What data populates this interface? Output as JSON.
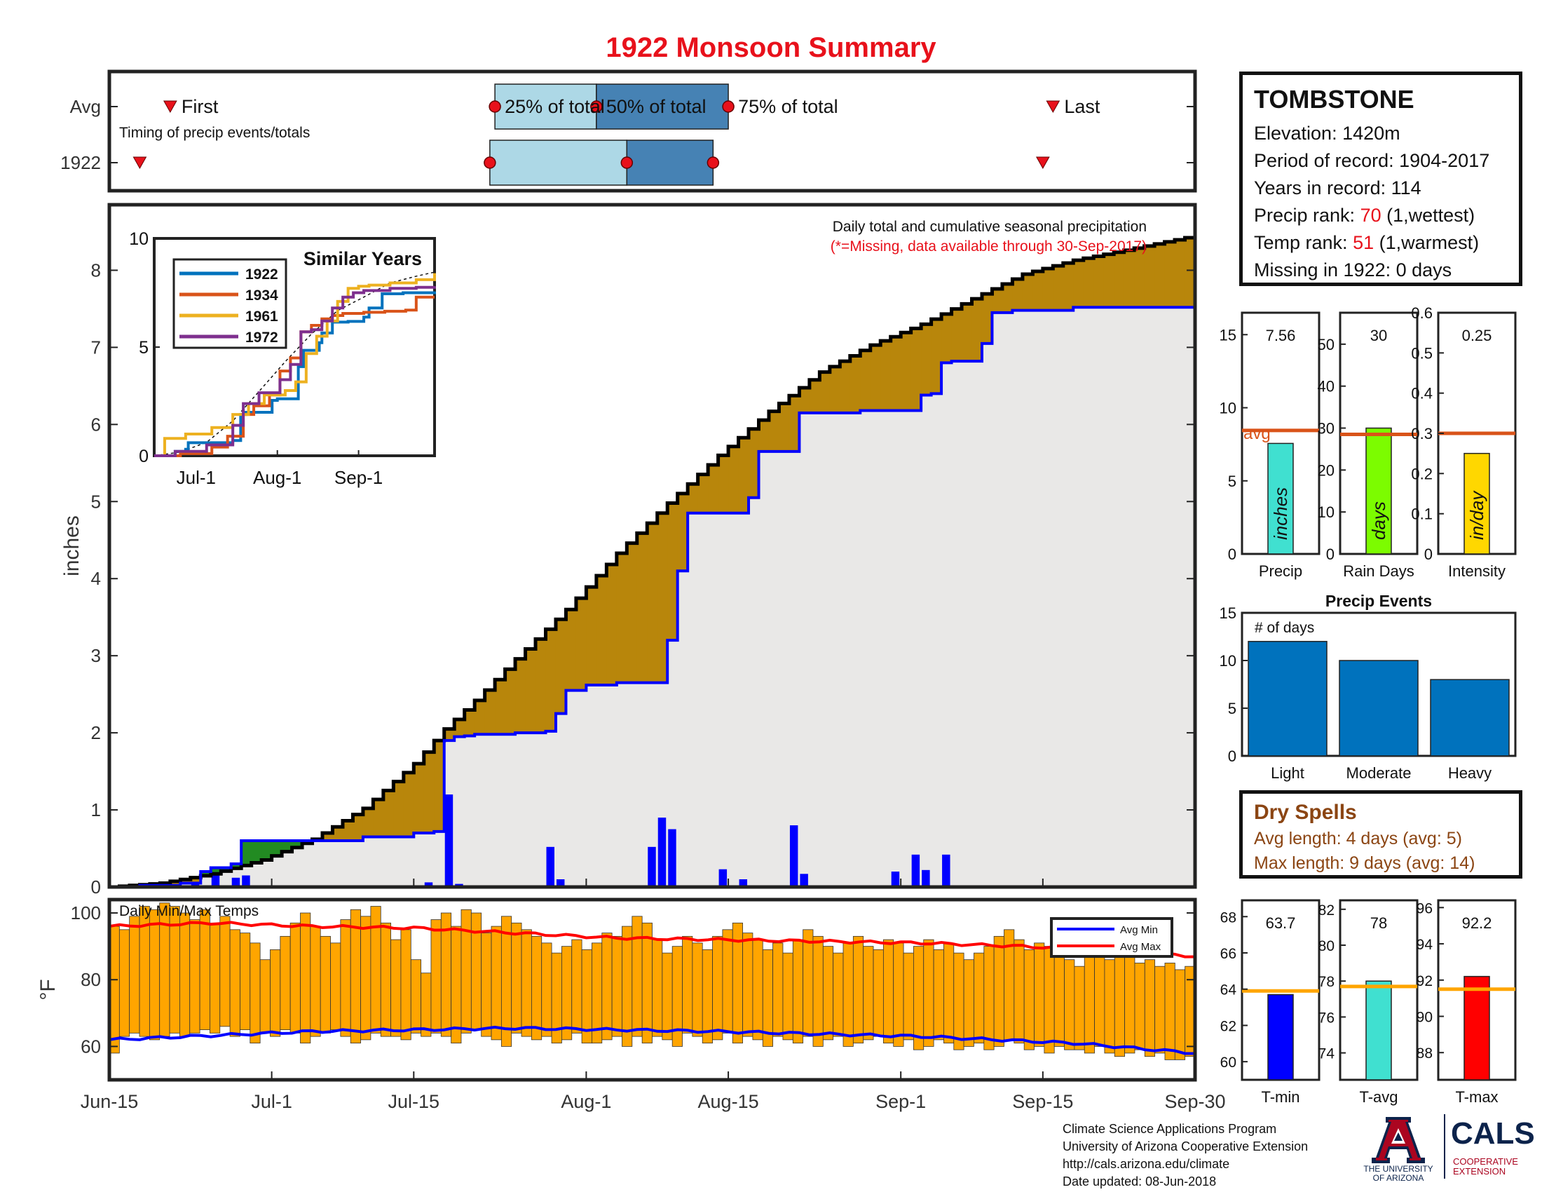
{
  "title": "1922 Monsoon Summary",
  "timing": {
    "row_labels": [
      "Avg",
      "1922"
    ],
    "first_label": "First",
    "last_label": "Last",
    "subtitle": "Timing of precip events/totals",
    "pct_labels": [
      "25% of total",
      "50% of total",
      "75% of total"
    ],
    "avg": {
      "first": 6,
      "p25": 38,
      "p50": 48,
      "p75": 61,
      "last": 93
    },
    "year": {
      "first": 3,
      "p25": 37.5,
      "p50": 51,
      "p75": 59.5,
      "last": 92
    }
  },
  "station": {
    "name": "TOMBSTONE",
    "elevation": "Elevation: 1420m",
    "period": "Period of record: 1904-2017",
    "years": "Years in record: 114",
    "precip_rank_prefix": "Precip rank: ",
    "precip_rank_value": "70",
    "precip_rank_suffix": " (1,wettest)",
    "temp_rank_prefix": "Temp rank: ",
    "temp_rank_value": "51",
    "temp_rank_suffix": " (1,warmest)",
    "missing": "Missing in 1922: 0 days"
  },
  "dry_spells": {
    "title": "Dry Spells",
    "avg": "Avg length: 4 days (avg: 5)",
    "max": "Max length: 9 days (avg: 14)"
  },
  "footer": {
    "line1": "Climate Science Applications Program",
    "line2": "University of Arizona Cooperative Extension",
    "line3": "http://cals.arizona.edu/climate",
    "line4": " Date updated: 08-Jun-2018"
  },
  "logos": {
    "ua_line1": "THE UNIVERSITY",
    "ua_line2": "OF ARIZONA",
    "cals": "CALS",
    "cals_sub1": "COOPERATIVE",
    "cals_sub2": "EXTENSION"
  },
  "colors": {
    "year_line": "#0000ff",
    "avg_line": "#000000",
    "deficit_fill": "#b8860b",
    "surplus_fill": "#228b22",
    "bg_fill": "#e9e8e7",
    "bar_blue": "#0000ff",
    "temp_bar": "#ffa500",
    "avg_min": "#0000ff",
    "avg_max": "#ff0000",
    "pct_light": "#add8e6",
    "pct_dark": "#4682b4",
    "marker": "#e8111b"
  },
  "chart_data": [
    {
      "id": "cumulative",
      "type": "line",
      "title": "Daily total and cumulative seasonal precipitation",
      "subtitle": "(*=Missing, data available through 30-Sep-2017)",
      "ylabel": "inches",
      "ylim": [
        0,
        8.85
      ],
      "yticks": [
        0,
        1,
        2,
        3,
        4,
        5,
        6,
        7,
        8
      ],
      "xlim": [
        0,
        107
      ],
      "x_ticks": [
        {
          "day": 0,
          "label": "Jun-15"
        },
        {
          "day": 16,
          "label": "Jul-1"
        },
        {
          "day": 30,
          "label": "Jul-15"
        },
        {
          "day": 47,
          "label": "Aug-1"
        },
        {
          "day": 61,
          "label": "Aug-15"
        },
        {
          "day": 78,
          "label": "Sep-1"
        },
        {
          "day": 92,
          "label": "Sep-15"
        },
        {
          "day": 107,
          "label": "Sep-30"
        }
      ],
      "avg_cumulative": {
        "days": [
          0,
          5,
          10,
          15,
          20,
          25,
          30,
          33,
          36,
          40,
          45,
          50,
          55,
          60,
          65,
          70,
          75,
          80,
          85,
          90,
          95,
          100,
          107
        ],
        "values": [
          0,
          0.05,
          0.17,
          0.35,
          0.62,
          1.02,
          1.6,
          2.05,
          2.42,
          2.96,
          3.6,
          4.33,
          4.98,
          5.6,
          6.17,
          6.68,
          7.03,
          7.3,
          7.63,
          7.95,
          8.13,
          8.26,
          8.45
        ]
      },
      "year_cumulative": {
        "days": [
          0,
          3,
          7,
          8.5,
          10,
          12,
          13,
          16,
          20,
          25,
          30,
          32,
          33,
          34,
          35,
          36,
          40,
          43,
          44,
          45,
          47,
          50,
          54,
          54.5,
          56,
          57,
          63,
          63.5,
          64,
          68,
          69,
          74,
          79,
          80,
          81,
          82,
          83,
          86,
          87,
          89,
          94,
          95,
          107
        ],
        "values": [
          0,
          0.02,
          0.05,
          0.2,
          0.25,
          0.3,
          0.6,
          0.6,
          0.6,
          0.65,
          0.7,
          0.72,
          1.9,
          1.95,
          1.96,
          1.98,
          2.0,
          2.02,
          2.25,
          2.55,
          2.62,
          2.65,
          2.65,
          3.2,
          4.1,
          4.85,
          5.05,
          5.2,
          5.65,
          6.15,
          6.15,
          6.18,
          6.18,
          6.38,
          6.4,
          6.8,
          6.82,
          7.05,
          7.45,
          7.48,
          7.48,
          7.52,
          7.56
        ]
      },
      "daily_bars": {
        "days": [
          6,
          8,
          10,
          12,
          13,
          31,
          33,
          34,
          43,
          44,
          53,
          54,
          55,
          60,
          62,
          67,
          68,
          77,
          79,
          80,
          82,
          92
        ],
        "values": [
          0.03,
          0.04,
          0.15,
          0.12,
          0.15,
          0.06,
          1.2,
          0.04,
          0.52,
          0.1,
          0.52,
          0.9,
          0.75,
          0.23,
          0.1,
          0.8,
          0.17,
          0.2,
          0.42,
          0.22,
          0.42,
          0.01
        ]
      }
    },
    {
      "id": "similar_years",
      "type": "line",
      "title": "Similar Years",
      "ylim": [
        0,
        10
      ],
      "yticks": [
        0,
        5,
        10
      ],
      "xlim": [
        0,
        107
      ],
      "x_ticks": [
        {
          "day": 16,
          "label": "Jul-1"
        },
        {
          "day": 47,
          "label": "Aug-1"
        },
        {
          "day": 78,
          "label": "Sep-1"
        }
      ],
      "avg_line": {
        "days": [
          0,
          10,
          20,
          30,
          40,
          50,
          60,
          70,
          80,
          90,
          100,
          107
        ],
        "values": [
          0,
          0.17,
          0.62,
          1.6,
          2.96,
          4.33,
          5.6,
          6.68,
          7.3,
          7.95,
          8.26,
          8.45
        ]
      },
      "series": [
        {
          "name": "1922",
          "color": "#0072bd",
          "days": [
            0,
            8,
            12,
            13,
            30,
            33,
            35,
            45,
            47,
            55,
            57,
            63,
            64,
            68,
            74,
            80,
            82,
            87,
            95,
            107
          ],
          "values": [
            0,
            0.2,
            0.3,
            0.6,
            0.7,
            1.9,
            2.0,
            2.55,
            2.62,
            4.1,
            4.85,
            5.2,
            5.65,
            6.15,
            6.18,
            6.38,
            6.8,
            7.45,
            7.5,
            7.56
          ]
        },
        {
          "name": "1934",
          "color": "#d95319",
          "days": [
            0,
            10,
            22,
            28,
            34,
            38,
            44,
            48,
            52,
            56,
            60,
            64,
            68,
            72,
            80,
            88,
            96,
            100,
            107
          ],
          "values": [
            0,
            0.1,
            0.4,
            0.9,
            1.9,
            2.3,
            2.8,
            3.9,
            4.5,
            5.7,
            6.0,
            6.3,
            6.45,
            6.55,
            6.6,
            6.65,
            6.7,
            7.3,
            7.3
          ]
        },
        {
          "name": "1961",
          "color": "#edb120",
          "days": [
            0,
            4,
            12,
            22,
            30,
            36,
            42,
            50,
            54,
            58,
            62,
            66,
            70,
            74,
            78,
            82,
            90,
            100,
            107
          ],
          "values": [
            0,
            0.8,
            1.0,
            1.3,
            1.9,
            2.4,
            2.8,
            3.0,
            3.4,
            4.7,
            5.5,
            6.2,
            7.1,
            7.7,
            7.8,
            7.85,
            7.95,
            8.1,
            8.4
          ]
        },
        {
          "name": "1972",
          "color": "#7e2f8e",
          "days": [
            0,
            8,
            20,
            30,
            34,
            40,
            44,
            48,
            52,
            56,
            60,
            64,
            68,
            72,
            76,
            80,
            90,
            100,
            107
          ],
          "values": [
            0,
            0.2,
            0.5,
            1.4,
            2.4,
            2.9,
            2.9,
            3.5,
            4.2,
            5.7,
            5.8,
            6.2,
            6.8,
            7.3,
            7.5,
            7.6,
            7.7,
            7.75,
            7.8
          ]
        }
      ]
    },
    {
      "id": "precip_summary",
      "type": "bar",
      "panels": [
        {
          "xlabel": "Precip",
          "value": 7.56,
          "label": "7.56",
          "avg": 8.45,
          "avg_text": "avg",
          "ylim": [
            0,
            16.5
          ],
          "yticks": [
            0,
            5,
            10,
            15
          ],
          "bar_text": "inches",
          "color": "#40e0d0"
        },
        {
          "xlabel": "Rain Days",
          "value": 30,
          "label": "30",
          "avg": 28.5,
          "ylim": [
            0,
            57.5
          ],
          "yticks": [
            0,
            10,
            20,
            30,
            40,
            50
          ],
          "bar_text": "days",
          "color": "#7cfc00"
        },
        {
          "xlabel": "Intensity",
          "value": 0.25,
          "label": "0.25",
          "avg": 0.3,
          "ylim": [
            0,
            0.6
          ],
          "yticks": [
            0,
            0.1,
            0.2,
            0.3,
            0.4,
            0.5,
            0.6
          ],
          "bar_text": "in/day",
          "color": "#ffd700"
        }
      ]
    },
    {
      "id": "precip_events",
      "type": "bar",
      "title": "Precip Events",
      "ylabel_inside": "# of days",
      "categories": [
        "Light",
        "Moderate",
        "Heavy"
      ],
      "values": [
        12,
        10,
        8
      ],
      "ylim": [
        0,
        15
      ],
      "yticks": [
        0,
        5,
        10,
        15
      ],
      "color": "#0072bd"
    },
    {
      "id": "daily_temps",
      "type": "bar",
      "title": "Daily Min/Max Temps",
      "ylabel": "°F",
      "ylim": [
        50,
        104
      ],
      "yticks": [
        60,
        80,
        100
      ],
      "legend": [
        "Avg Min",
        "Avg Max"
      ],
      "legend_position": "top-right",
      "avg_min": {
        "days": [
          0,
          20,
          40,
          60,
          80,
          95,
          107
        ],
        "values": [
          62,
          64.5,
          65.5,
          64.5,
          63,
          61,
          58
        ]
      },
      "avg_max": {
        "days": [
          0,
          10,
          20,
          30,
          40,
          50,
          60,
          70,
          80,
          90,
          100,
          107
        ],
        "values": [
          96,
          97,
          96,
          95.5,
          94,
          92.5,
          92,
          91.5,
          91,
          90,
          88.5,
          87
        ]
      },
      "tmax": [
        96,
        95,
        99,
        102,
        101,
        103,
        102,
        100,
        98,
        101,
        97,
        99,
        95,
        94,
        91,
        86,
        89,
        93,
        97,
        100,
        96,
        93,
        91,
        98,
        101,
        99,
        102,
        97,
        92,
        95,
        86,
        82,
        98,
        100,
        96,
        101,
        100,
        94,
        96,
        99,
        97,
        95,
        93,
        91,
        88,
        90,
        92,
        89,
        91,
        94,
        93,
        96,
        99,
        97,
        92,
        88,
        90,
        93,
        91,
        89,
        93,
        95,
        97,
        94,
        92,
        89,
        91,
        88,
        92,
        95,
        93,
        90,
        88,
        91,
        93,
        90,
        89,
        92,
        91,
        88,
        90,
        92,
        89,
        91,
        88,
        86,
        88,
        90,
        93,
        95,
        92,
        89,
        91,
        90,
        88,
        86,
        84,
        87,
        89,
        86,
        88,
        87,
        85,
        86,
        84,
        85,
        83,
        84
      ],
      "tmin": [
        58,
        63,
        64,
        63,
        62,
        63,
        64,
        63,
        64,
        65,
        64,
        66,
        63,
        65,
        61,
        64,
        63,
        65,
        64,
        61,
        63,
        64,
        65,
        63,
        61,
        62,
        64,
        63,
        63,
        62,
        64,
        63,
        64,
        63,
        61,
        64,
        65,
        63,
        62,
        60,
        64,
        63,
        62,
        63,
        61,
        62,
        64,
        61,
        61,
        62,
        63,
        60,
        63,
        61,
        63,
        62,
        60,
        64,
        63,
        61,
        62,
        64,
        61,
        63,
        62,
        60,
        63,
        62,
        61,
        63,
        60,
        62,
        63,
        60,
        61,
        62,
        63,
        61,
        60,
        62,
        59,
        60,
        62,
        61,
        59,
        60,
        61,
        59,
        60,
        62,
        61,
        59,
        60,
        58,
        60,
        59,
        59,
        58,
        60,
        58,
        57,
        58,
        59,
        57,
        58,
        56,
        56,
        57
      ]
    },
    {
      "id": "temp_summary",
      "type": "bar",
      "panels": [
        {
          "xlabel": "T-min",
          "value": 63.7,
          "label": "63.7",
          "avg": 63.9,
          "ylim": [
            59,
            68.9
          ],
          "yticks": [
            60,
            62,
            64,
            66,
            68
          ],
          "color": "#0000ff"
        },
        {
          "xlabel": "T-avg",
          "value": 78,
          "label": "78",
          "avg": 77.7,
          "ylim": [
            72.5,
            82.5
          ],
          "yticks": [
            74,
            76,
            78,
            80,
            82
          ],
          "color": "#40e0d0"
        },
        {
          "xlabel": "T-max",
          "value": 92.2,
          "label": "92.2",
          "avg": 91.5,
          "ylim": [
            86.5,
            96.4
          ],
          "yticks": [
            88,
            90,
            92,
            94,
            96
          ],
          "color": "#ff0000"
        }
      ]
    }
  ]
}
